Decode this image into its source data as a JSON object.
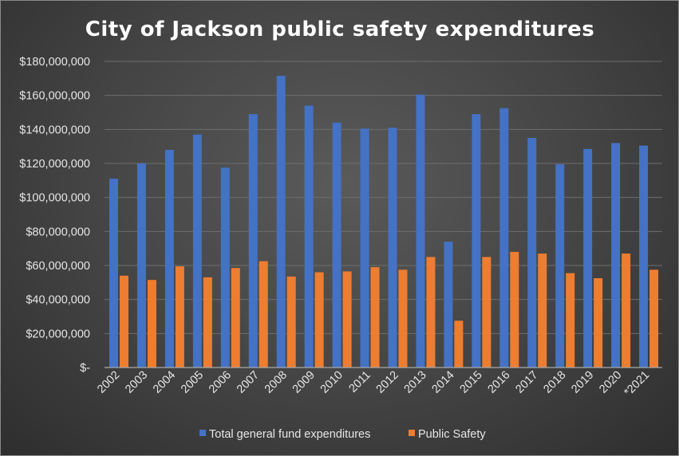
{
  "chart_data": {
    "type": "bar",
    "title": "City of Jackson public safety expenditures",
    "xlabel": "",
    "ylabel": "",
    "categories": [
      "2002",
      "2003",
      "2004",
      "2005",
      "2006",
      "2007",
      "2008",
      "2009",
      "2010",
      "2011",
      "2012",
      "2013",
      "2014",
      "2015",
      "2016",
      "2017",
      "2018",
      "2019",
      "2020",
      "*2021"
    ],
    "series": [
      {
        "name": "Total general fund expenditures",
        "color": "#4472c4",
        "values": [
          111000000,
          120000000,
          128000000,
          137000000,
          117500000,
          149000000,
          171500000,
          154000000,
          144000000,
          140500000,
          141000000,
          160500000,
          74000000,
          149000000,
          152500000,
          135000000,
          119500000,
          128500000,
          132000000,
          130500000
        ]
      },
      {
        "name": "Public Safety",
        "color": "#ed7d31",
        "values": [
          54000000,
          51500000,
          59500000,
          53000000,
          58500000,
          62500000,
          53500000,
          56000000,
          56500000,
          59000000,
          57500000,
          65000000,
          27500000,
          65000000,
          68000000,
          67000000,
          55500000,
          52500000,
          67000000,
          57500000
        ]
      }
    ],
    "ylim": [
      0,
      180000000
    ],
    "yticks": [
      0,
      20000000,
      40000000,
      60000000,
      80000000,
      100000000,
      120000000,
      140000000,
      160000000,
      180000000
    ],
    "ytick_labels": [
      "$-",
      "$20,000,000",
      "$40,000,000",
      "$60,000,000",
      "$80,000,000",
      "$100,000,000",
      "$120,000,000",
      "$140,000,000",
      "$160,000,000",
      "$180,000,000"
    ],
    "grid": true,
    "legend_position": "bottom",
    "background_color": "#404040",
    "text_color": "#e6e6e6"
  }
}
